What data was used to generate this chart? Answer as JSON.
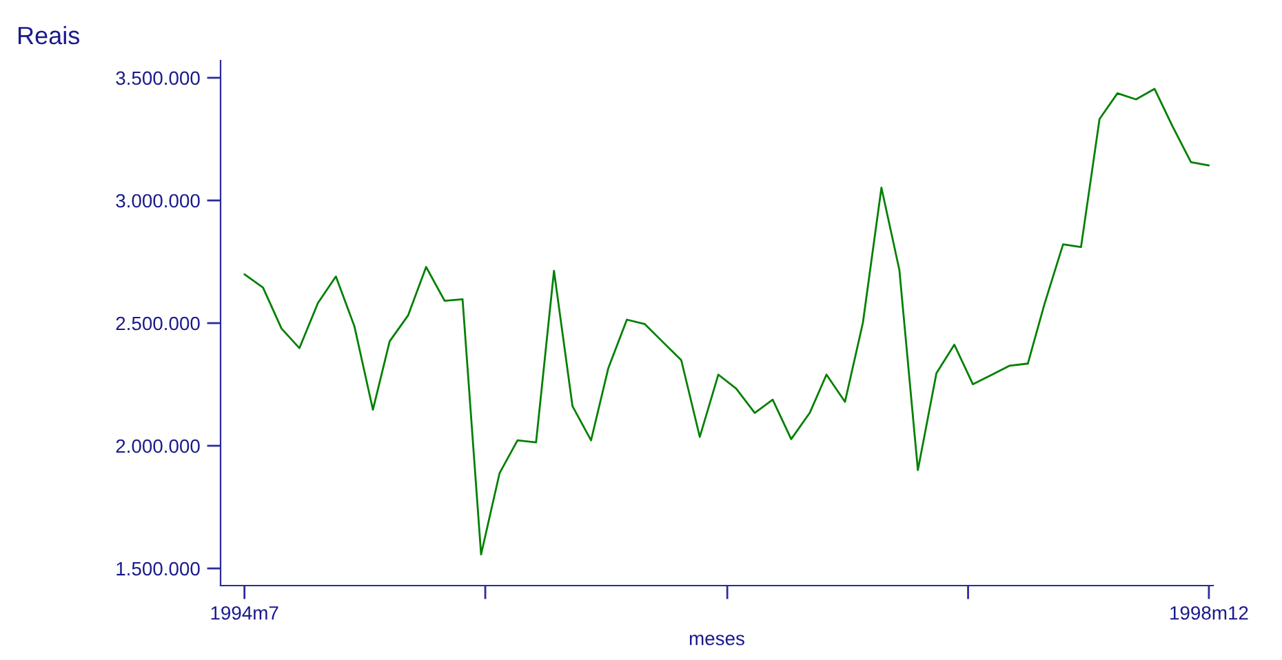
{
  "chart_data": {
    "type": "line",
    "ylabel": "Reais",
    "xlabel": "meses",
    "x": [
      "1994-07",
      "1994-08",
      "1994-09",
      "1994-10",
      "1994-11",
      "1994-12",
      "1995-01",
      "1995-02",
      "1995-03",
      "1995-04",
      "1995-05",
      "1995-06",
      "1995-07",
      "1995-08",
      "1995-09",
      "1995-10",
      "1995-11",
      "1995-12",
      "1996-01",
      "1996-02",
      "1996-03",
      "1996-04",
      "1996-05",
      "1996-06",
      "1996-07",
      "1996-08",
      "1996-09",
      "1996-10",
      "1996-11",
      "1996-12",
      "1997-01",
      "1997-02",
      "1997-03",
      "1997-04",
      "1997-05",
      "1997-06",
      "1997-07",
      "1997-08",
      "1997-09",
      "1997-10",
      "1997-11",
      "1997-12",
      "1998-01",
      "1998-02",
      "1998-03",
      "1998-04",
      "1998-05",
      "1998-06",
      "1998-07",
      "1998-08",
      "1998-09",
      "1998-10",
      "1998-11",
      "1998-12"
    ],
    "series": [
      {
        "color": "#008000",
        "values": [
          2699000,
          2645000,
          2478000,
          2398000,
          2582000,
          2690000,
          2487000,
          2147000,
          2426000,
          2532000,
          2729000,
          2591000,
          2597000,
          1557000,
          1889000,
          2022000,
          2014000,
          2713000,
          2161000,
          2022000,
          2317000,
          2514000,
          2496000,
          2421000,
          2349000,
          2036000,
          2290000,
          2233000,
          2134000,
          2188000,
          2027000,
          2134000,
          2290000,
          2179000,
          2502000,
          3052000,
          2717000,
          1901000,
          2296000,
          2412000,
          2251000,
          2287000,
          2326000,
          2335000,
          2579000,
          2821000,
          2810000,
          3332000,
          3437000,
          3412000,
          3455000,
          3303000,
          3156000,
          3143000
        ]
      }
    ],
    "ylim": [
      1430000,
      3570000
    ],
    "yticks": [
      {
        "value": 1500000,
        "label": "1.500.000"
      },
      {
        "value": 2000000,
        "label": "2.000.000"
      },
      {
        "value": 2500000,
        "label": "2.500.000"
      },
      {
        "value": 3000000,
        "label": "3.000.000"
      },
      {
        "value": 3500000,
        "label": "3.500.000"
      }
    ],
    "xticks": [
      {
        "value": "1994-07",
        "label": "1994m7"
      },
      {
        "value": "1995-08-08",
        "label": null
      },
      {
        "value": "1996-09-16",
        "label": null
      },
      {
        "value": "1997-10-24",
        "label": null
      },
      {
        "value": "1998-12",
        "label": "1998m12"
      }
    ],
    "xlim": [
      "1994-05-22",
      "1998-12-08"
    ],
    "grid": false,
    "legend": false,
    "marker": "none",
    "line_style": "solid"
  }
}
